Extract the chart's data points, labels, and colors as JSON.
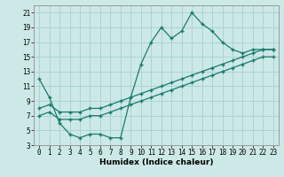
{
  "xlabel": "Humidex (Indice chaleur)",
  "xlim": [
    -0.5,
    23.5
  ],
  "ylim": [
    3,
    22
  ],
  "yticks": [
    3,
    5,
    7,
    9,
    11,
    13,
    15,
    17,
    19,
    21
  ],
  "xticks": [
    0,
    1,
    2,
    3,
    4,
    5,
    6,
    7,
    8,
    9,
    10,
    11,
    12,
    13,
    14,
    15,
    16,
    17,
    18,
    19,
    20,
    21,
    22,
    23
  ],
  "bg_color": "#cce9e7",
  "grid_color": "#aad4d0",
  "line_color": "#1a7a6e",
  "line1_x": [
    0,
    1,
    2,
    3,
    4,
    5,
    6,
    7,
    8,
    9,
    10,
    11,
    12,
    13,
    14,
    15,
    16,
    17,
    18,
    19,
    20,
    21,
    22,
    23
  ],
  "line1_y": [
    12,
    9.5,
    6,
    4.5,
    4,
    4.5,
    4.5,
    4,
    4,
    9.5,
    14,
    17,
    19,
    17.5,
    18.5,
    21,
    19.5,
    18.5,
    17,
    16,
    15.5,
    16,
    16,
    16
  ],
  "line2_x": [
    0,
    1,
    2,
    3,
    4,
    5,
    6,
    7,
    8,
    9,
    10,
    11,
    12,
    13,
    14,
    15,
    16,
    17,
    18,
    19,
    20,
    21,
    22,
    23
  ],
  "line2_y": [
    8,
    8.5,
    7.5,
    7.5,
    7.5,
    8,
    8,
    8.5,
    9,
    9.5,
    10,
    10.5,
    11,
    11.5,
    12,
    12.5,
    13,
    13.5,
    14,
    14.5,
    15,
    15.5,
    16,
    16
  ],
  "line3_x": [
    0,
    1,
    2,
    3,
    4,
    5,
    6,
    7,
    8,
    9,
    10,
    11,
    12,
    13,
    14,
    15,
    16,
    17,
    18,
    19,
    20,
    21,
    22,
    23
  ],
  "line3_y": [
    7,
    7.5,
    6.5,
    6.5,
    6.5,
    7,
    7,
    7.5,
    8,
    8.5,
    9,
    9.5,
    10,
    10.5,
    11,
    11.5,
    12,
    12.5,
    13,
    13.5,
    14,
    14.5,
    15,
    15
  ],
  "marker": "+",
  "markersize": 3,
  "linewidth": 0.9,
  "tick_fontsize": 5.5,
  "xlabel_fontsize": 6.5
}
